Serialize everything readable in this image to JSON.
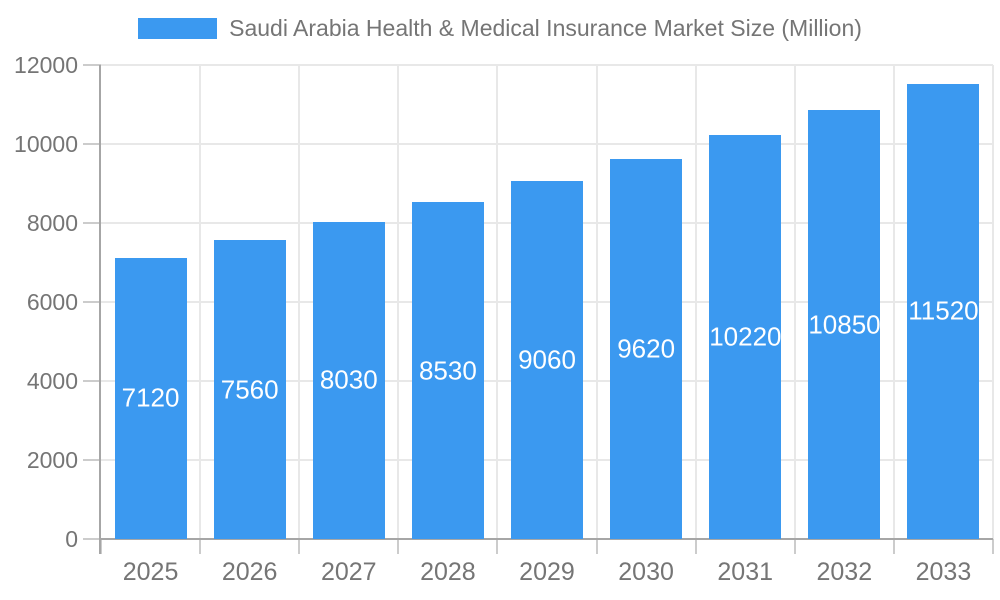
{
  "chart_data": {
    "type": "bar",
    "title": "Saudi Arabia Health & Medical Insurance Market Size (Million)",
    "categories": [
      "2025",
      "2026",
      "2027",
      "2028",
      "2029",
      "2030",
      "2031",
      "2032",
      "2033"
    ],
    "values": [
      7120,
      7560,
      8030,
      8530,
      9060,
      9620,
      10220,
      10850,
      11520
    ],
    "xlabel": "",
    "ylabel": "",
    "ylim": [
      0,
      12000
    ],
    "yticks": [
      0,
      2000,
      4000,
      6000,
      8000,
      10000,
      12000
    ],
    "grid": true,
    "legend_position": "top-center",
    "value_label_position": "inside-center",
    "colors": {
      "bar": "#3B99F0",
      "value_label": "#ffffff",
      "axis_text": "#757575",
      "axis_line": "#a6a6a6",
      "grid_line": "#e8e8e8",
      "tick_line": "#cccccc",
      "background": "#ffffff"
    }
  }
}
